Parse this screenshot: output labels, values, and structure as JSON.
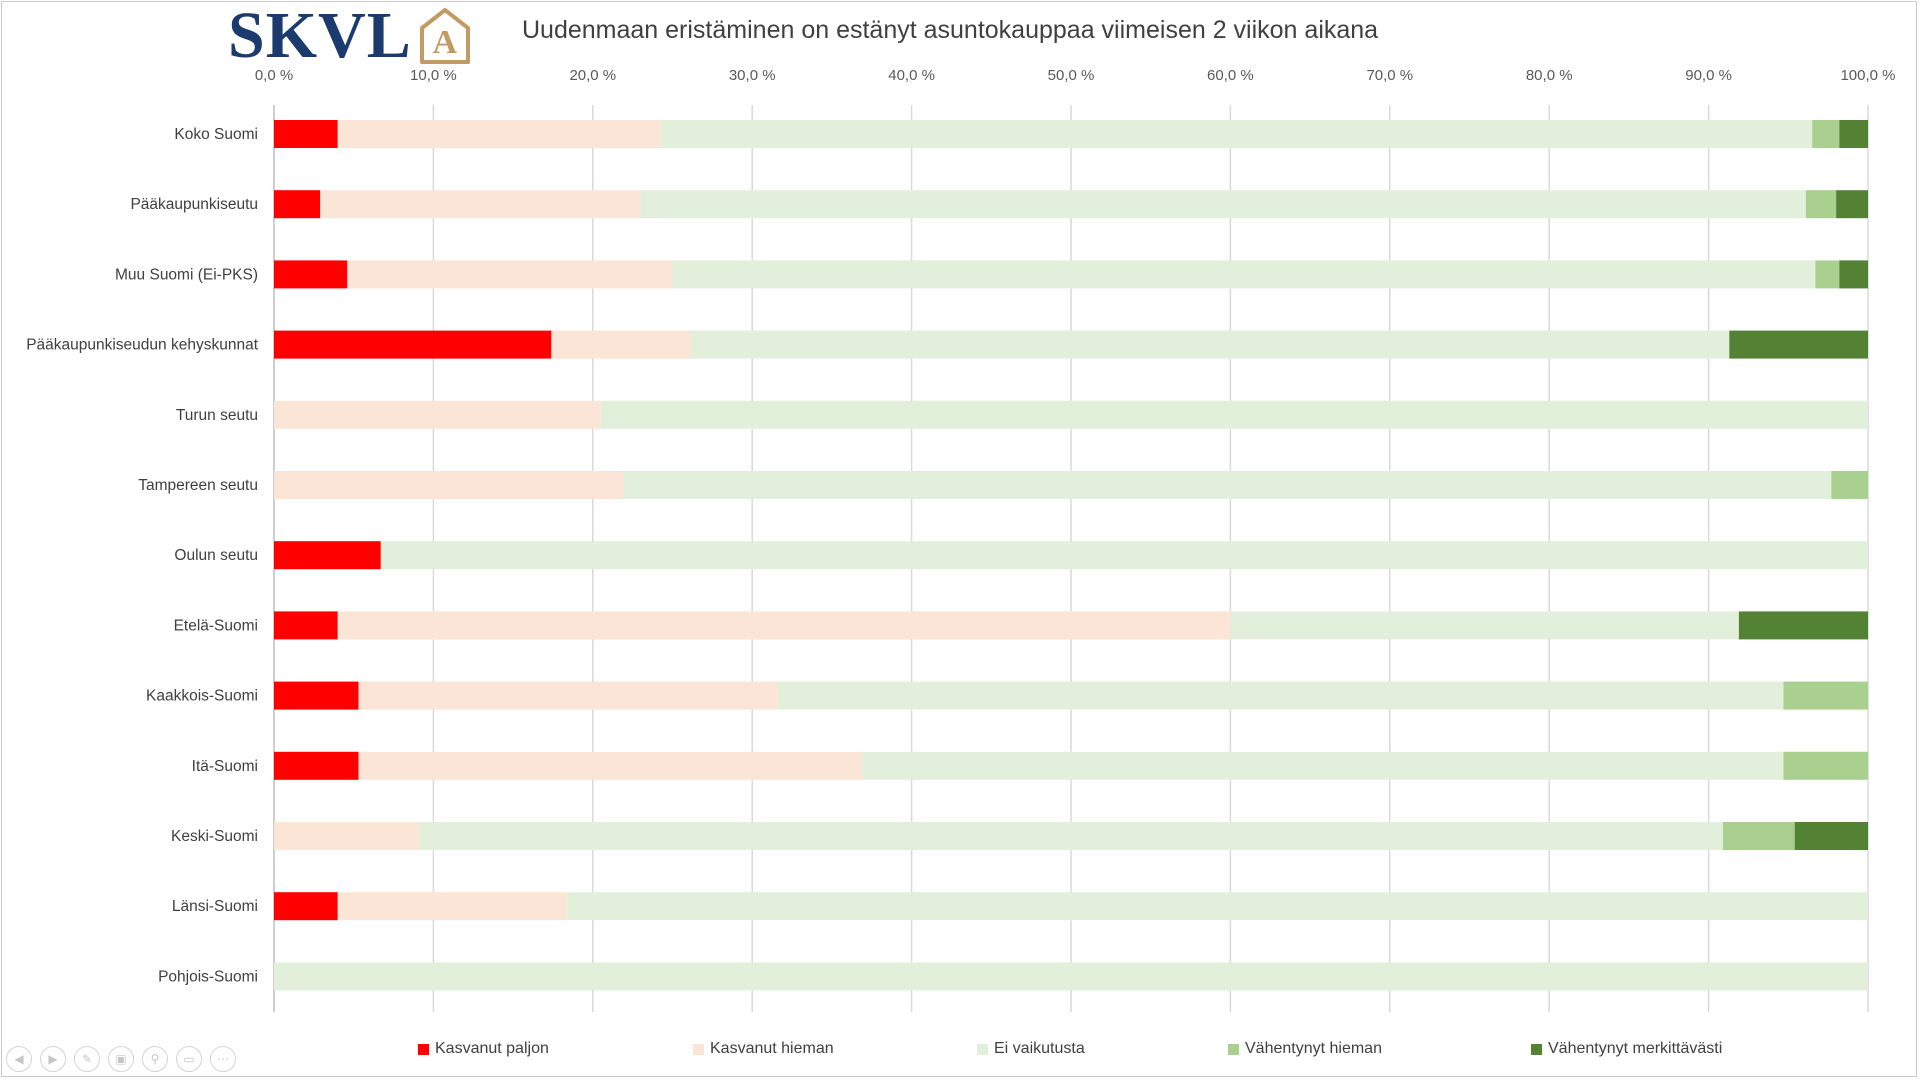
{
  "logo": {
    "text": "SKVL",
    "mark_letter": "A",
    "text_color": "#1b3a6d",
    "mark_color": "#c29a63"
  },
  "chart_data": {
    "type": "bar",
    "orientation": "horizontal",
    "stacked": true,
    "title": "Uudenmaan eristäminen on estänyt asuntokauppaa viimeisen 2 viikon aikana",
    "categories": [
      "Koko Suomi",
      "Pääkaupunkiseutu",
      "Muu Suomi (Ei-PKS)",
      "Pääkaupunkiseudun kehyskunnat",
      "Turun seutu",
      "Tampereen seutu",
      "Oulun seutu",
      "Etelä-Suomi",
      "Kaakkois-Suomi",
      "Itä-Suomi",
      "Keski-Suomi",
      "Länsi-Suomi",
      "Pohjois-Suomi"
    ],
    "xlim": [
      0,
      100
    ],
    "x_tick_labels": [
      "0,0 %",
      "10,0 %",
      "20,0 %",
      "30,0 %",
      "40,0 %",
      "50,0 %",
      "60,0 %",
      "70,0 %",
      "80,0 %",
      "90,0 %",
      "100,0 %"
    ],
    "x_axis_position": "top",
    "grid": true,
    "legend_position": "bottom",
    "series": [
      {
        "name": "Kasvanut paljon",
        "color": "#ff0000",
        "values": [
          4.0,
          2.9,
          4.6,
          17.4,
          0,
          0,
          6.7,
          4.0,
          5.3,
          5.3,
          0,
          4.0,
          0
        ]
      },
      {
        "name": "Kasvanut hieman",
        "color": "#fbe5d6",
        "values": [
          20.3,
          20.1,
          20.4,
          8.7,
          20.5,
          21.9,
          0,
          56.0,
          26.3,
          31.6,
          9.1,
          14.4,
          0
        ]
      },
      {
        "name": "Ei vaikutusta",
        "color": "#e2efda",
        "values": [
          72.2,
          73.1,
          71.7,
          65.2,
          79.5,
          75.8,
          93.3,
          31.9,
          63.1,
          57.8,
          81.8,
          81.6,
          100
        ]
      },
      {
        "name": "Vähentynyt hieman",
        "color": "#a9d08e",
        "values": [
          1.7,
          1.9,
          1.5,
          0,
          0,
          2.3,
          0,
          0,
          5.3,
          5.3,
          4.5,
          0,
          0
        ]
      },
      {
        "name": "Vähentynyt merkittävästi",
        "color": "#548235",
        "values": [
          1.8,
          2.0,
          1.8,
          8.7,
          0,
          0,
          0,
          8.1,
          0,
          0,
          4.6,
          0,
          0
        ]
      }
    ]
  }
}
